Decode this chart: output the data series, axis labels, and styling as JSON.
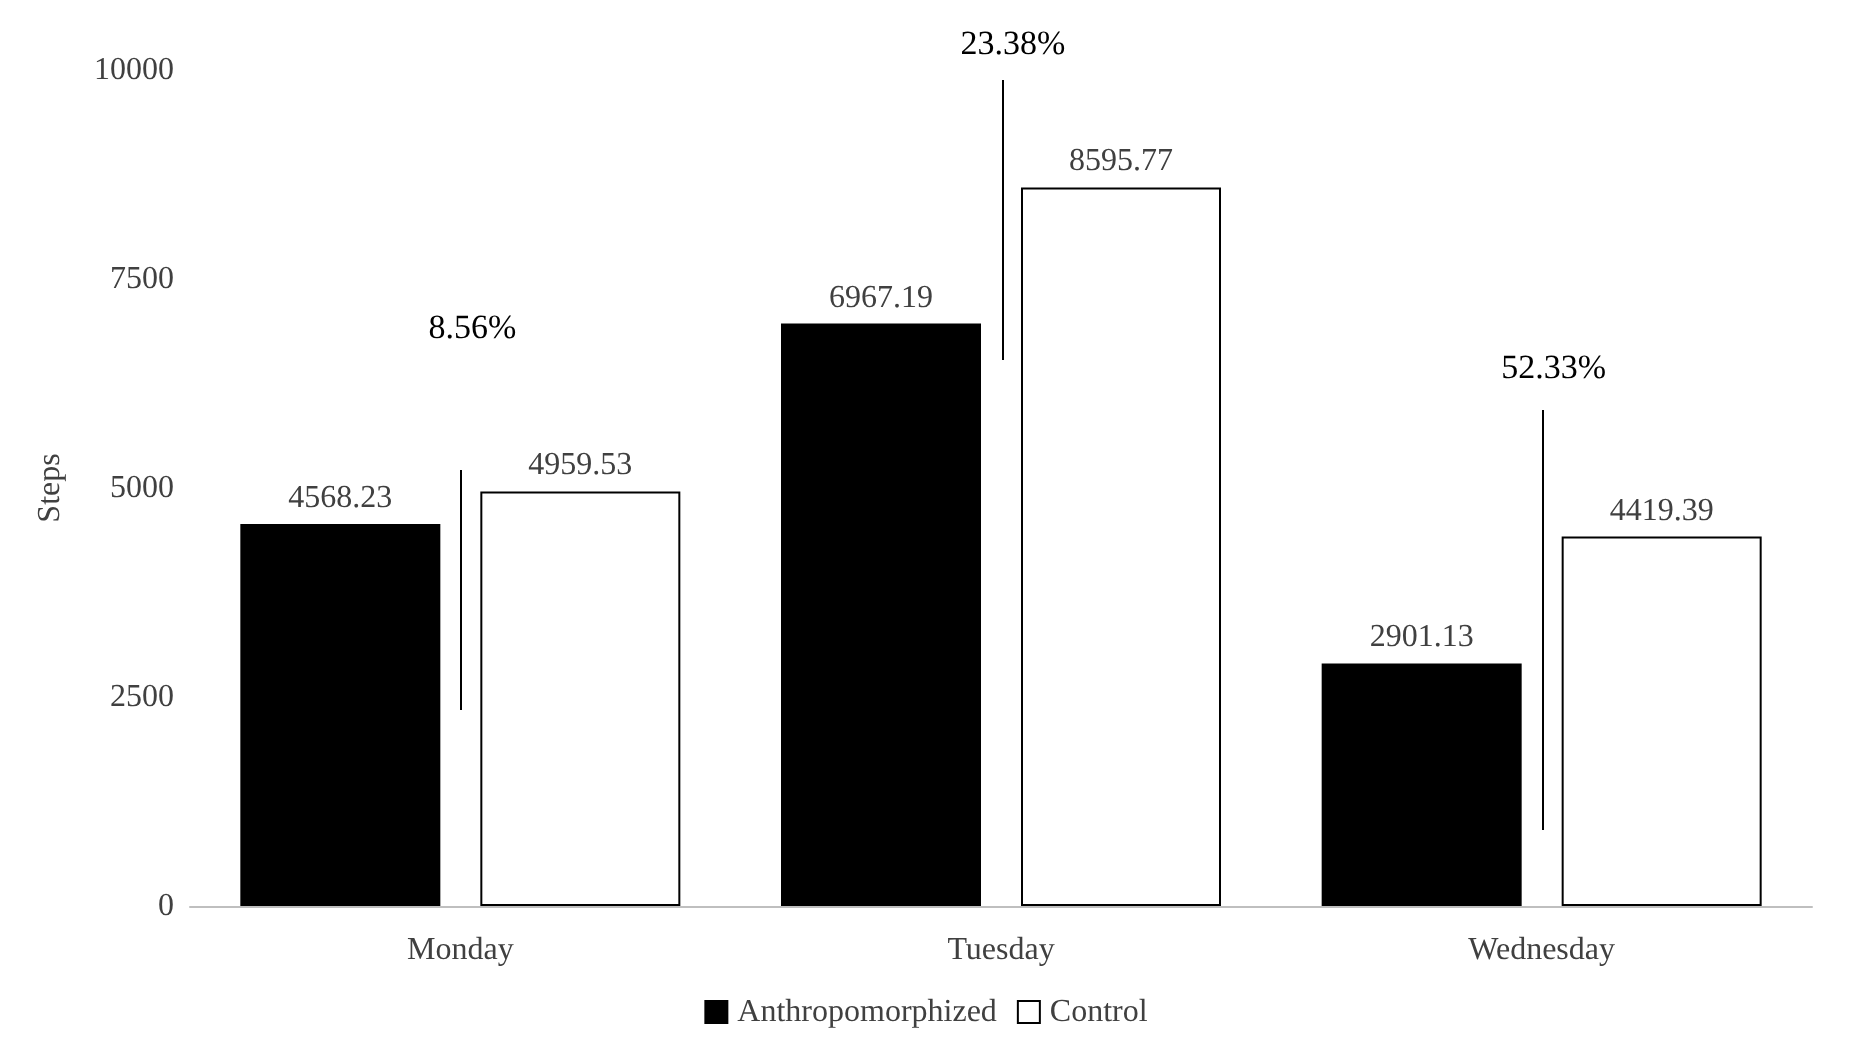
{
  "chart_data": {
    "type": "bar",
    "ylabel": "Steps",
    "categories": [
      "Monday",
      "Tuesday",
      "Wednesday"
    ],
    "series": [
      {
        "name": "Anthropomorphized",
        "color": "#000000",
        "values": [
          4568.23,
          6967.19,
          2901.13
        ]
      },
      {
        "name": "Control",
        "color": "#ffffff",
        "values": [
          4959.53,
          8595.77,
          4419.39
        ]
      }
    ],
    "ylim": [
      0,
      10000
    ],
    "yticks": [
      0,
      2500,
      5000,
      7500,
      10000
    ],
    "grid": false,
    "legend": "bottom",
    "data_labels": true,
    "annotations": [
      "8.56%",
      "23.38%",
      "52.33%"
    ]
  }
}
